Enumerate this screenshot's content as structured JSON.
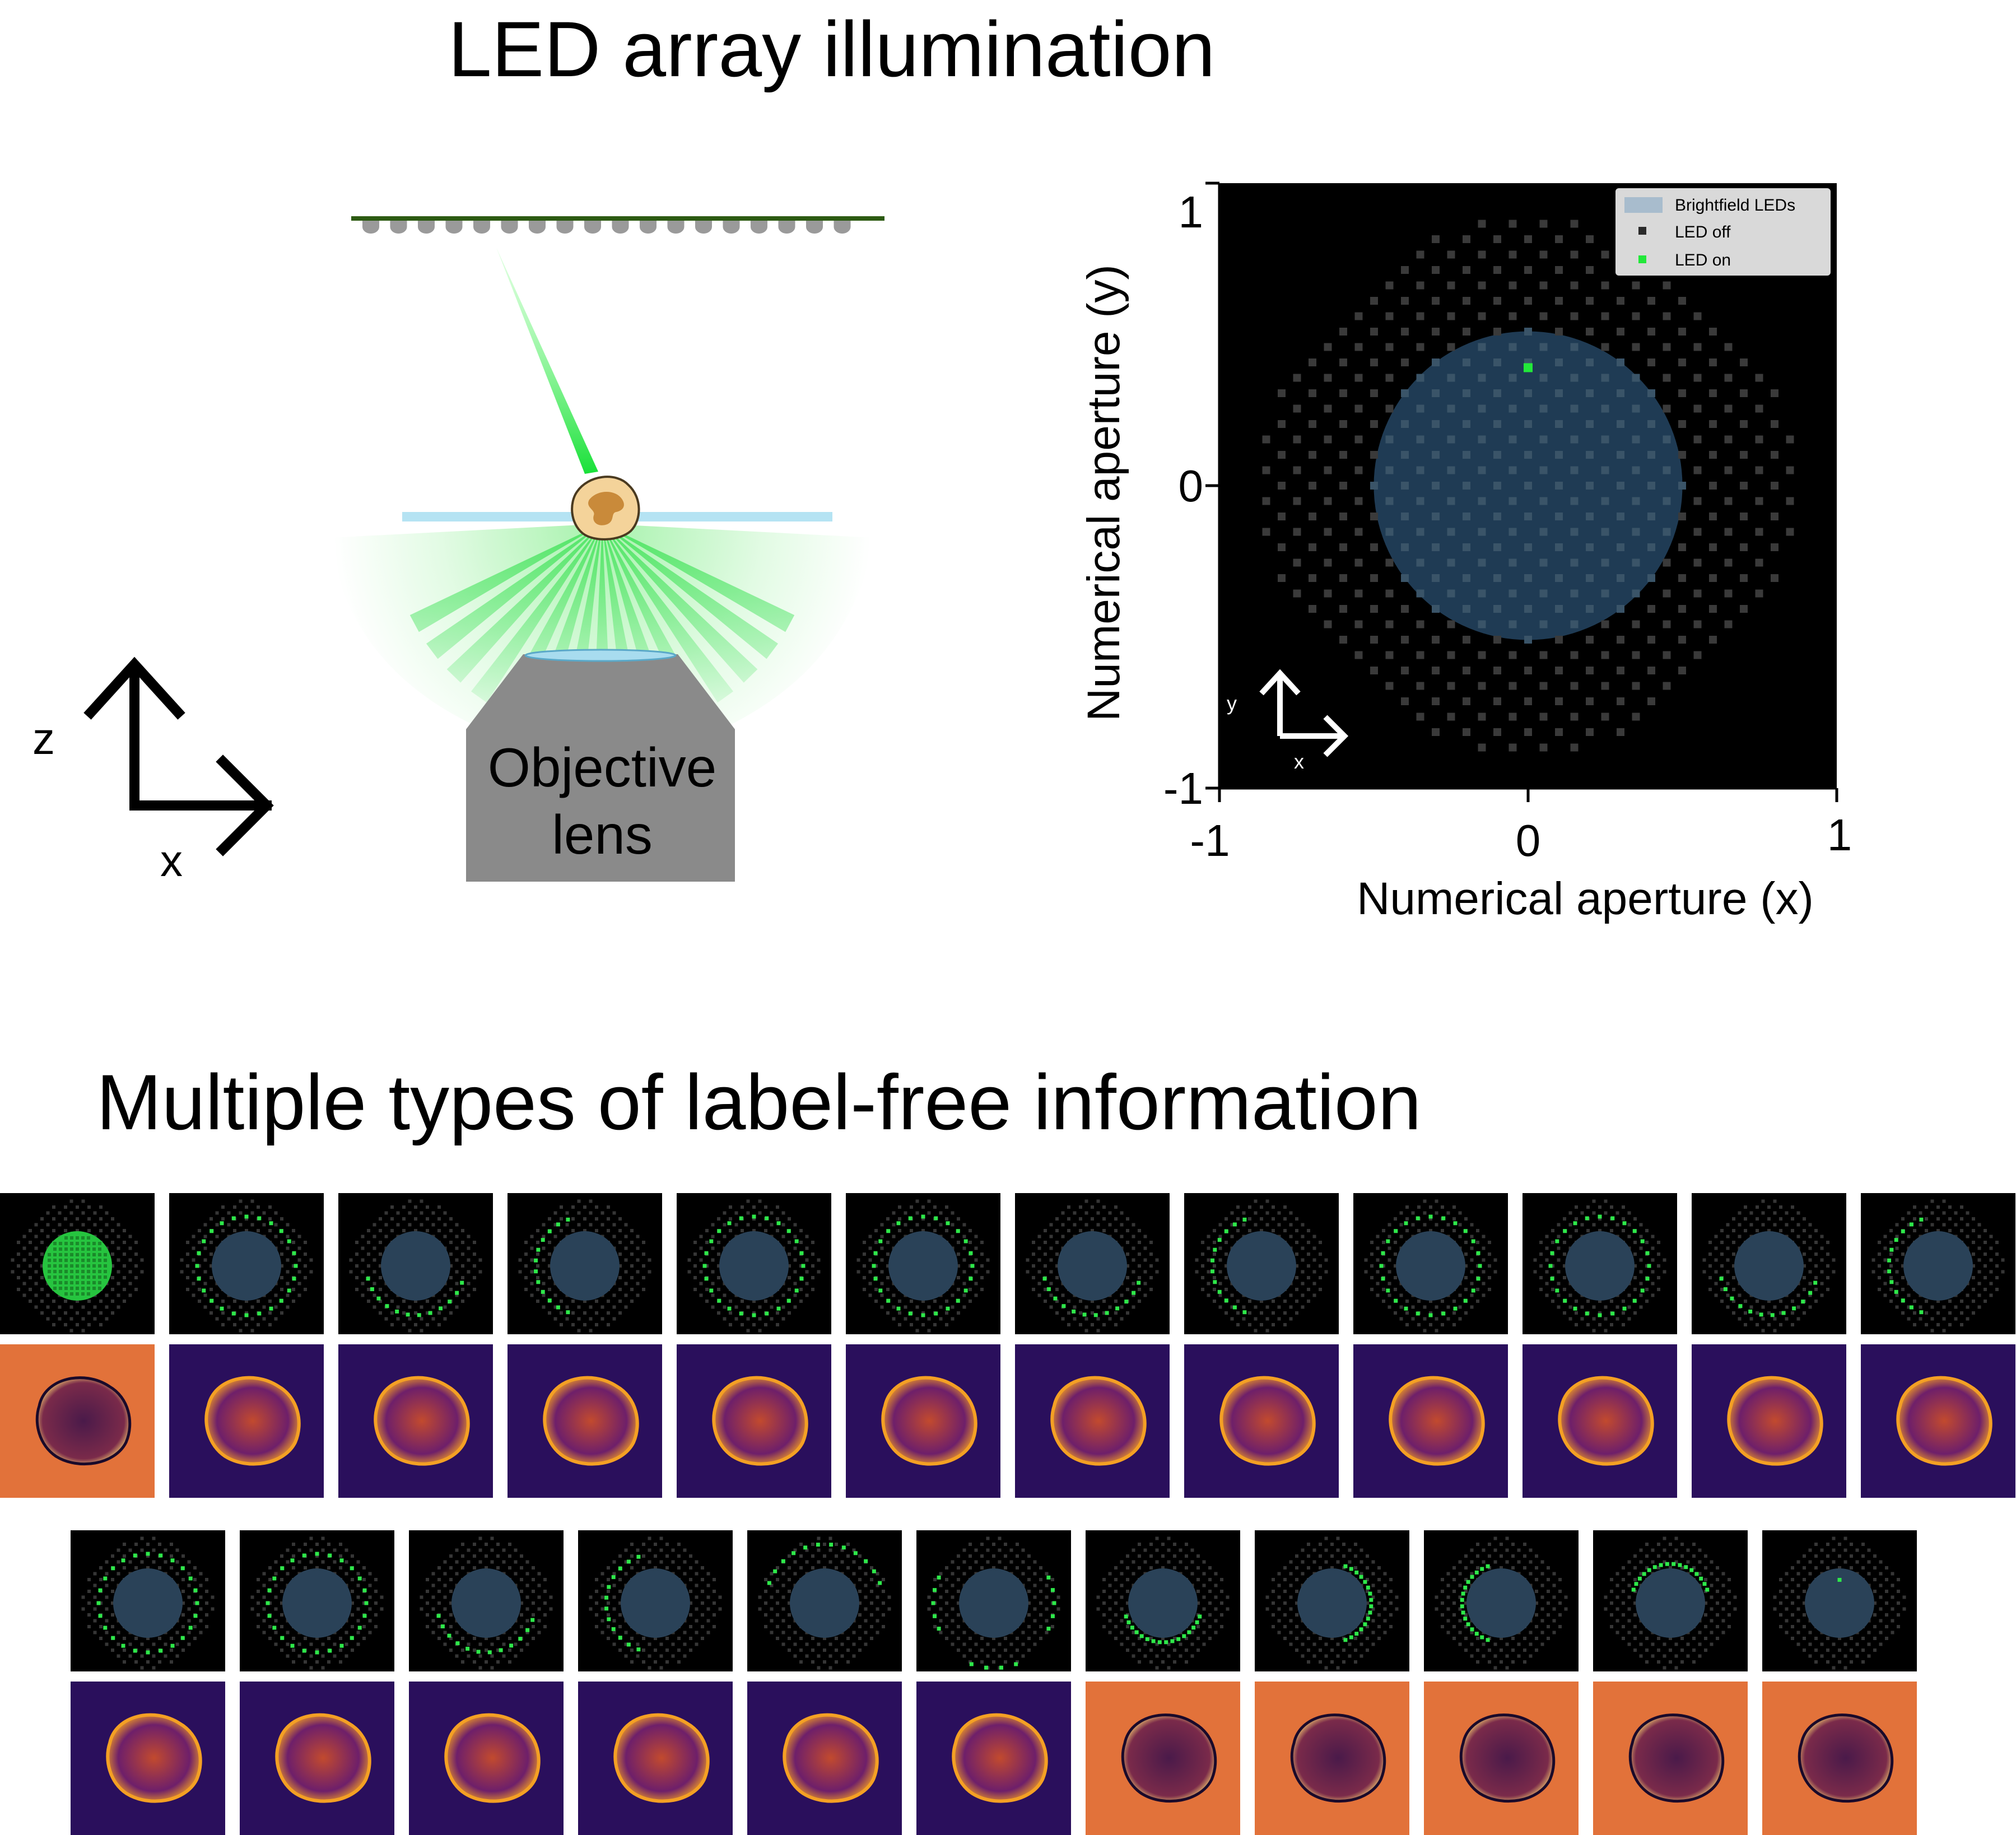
{
  "titles": {
    "top": "LED array illumination",
    "bottom": "Multiple types of label-free information"
  },
  "diagram": {
    "objective_label_line1": "Objective",
    "objective_label_line2": "lens",
    "axis_z": "z",
    "axis_x": "x"
  },
  "chart_data": {
    "type": "scatter",
    "title": "",
    "xlabel": "Numerical aperture (x)",
    "ylabel": "Numerical aperture (y)",
    "xlim": [
      -1,
      1
    ],
    "ylim": [
      -1,
      1
    ],
    "xticks": [
      "-1",
      "0",
      "1"
    ],
    "yticks": [
      "1",
      "0",
      "-1"
    ],
    "grid": false,
    "legend_position": "top-right",
    "legend": [
      "Brightfield LEDs",
      "LED off",
      "LED on"
    ],
    "brightfield_na": 0.5,
    "led_on": [
      {
        "x": 0.0,
        "y": 0.39
      }
    ],
    "inset_axis_x": "x",
    "inset_axis_y": "y",
    "colors": {
      "background": "#000000",
      "brightfield": "#1f3b54",
      "led_off": "#3a3a3a",
      "led_on": "#22e83a"
    }
  },
  "panels": {
    "row1": [
      {
        "pattern": "brightfield",
        "colormap": "orange"
      },
      {
        "pattern": "ring",
        "colormap": "inferno"
      },
      {
        "pattern": "ring-bottom",
        "colormap": "inferno"
      },
      {
        "pattern": "ring-left",
        "colormap": "inferno"
      },
      {
        "pattern": "ring",
        "colormap": "inferno"
      },
      {
        "pattern": "ring",
        "colormap": "inferno"
      },
      {
        "pattern": "ring-bottom",
        "colormap": "inferno"
      },
      {
        "pattern": "ring-left",
        "colormap": "inferno"
      },
      {
        "pattern": "ring",
        "colormap": "inferno"
      },
      {
        "pattern": "ring",
        "colormap": "inferno"
      },
      {
        "pattern": "ring-bottom",
        "colormap": "inferno"
      },
      {
        "pattern": "ring-left",
        "colormap": "inferno"
      }
    ],
    "row2": [
      {
        "pattern": "ring",
        "colormap": "inferno"
      },
      {
        "pattern": "ring",
        "colormap": "inferno"
      },
      {
        "pattern": "ring-bottom",
        "colormap": "inferno"
      },
      {
        "pattern": "ring-left",
        "colormap": "inferno"
      },
      {
        "pattern": "ring-top",
        "colormap": "inferno"
      },
      {
        "pattern": "ring-sides",
        "colormap": "inferno"
      },
      {
        "pattern": "half-bottom",
        "colormap": "orange"
      },
      {
        "pattern": "half-right",
        "colormap": "orange"
      },
      {
        "pattern": "half-left",
        "colormap": "orange"
      },
      {
        "pattern": "half-top",
        "colormap": "orange"
      },
      {
        "pattern": "single",
        "colormap": "orange"
      }
    ]
  }
}
